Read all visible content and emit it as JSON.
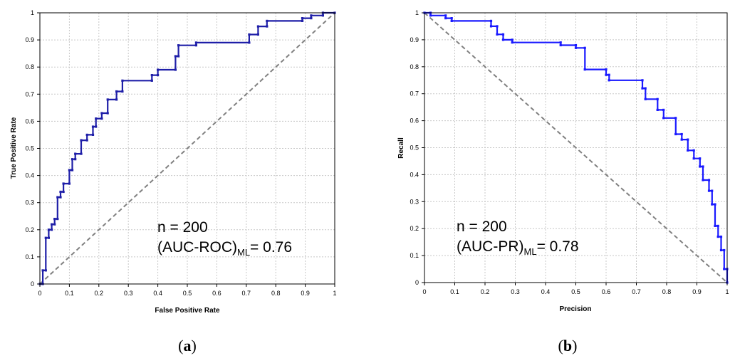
{
  "chart_data": [
    {
      "type": "line",
      "panel_label": {
        "open": "(",
        "letter": "a",
        "close": ")"
      },
      "xlabel": "False Positive Rate",
      "ylabel": "True Positive Rate",
      "xlim": [
        0,
        1
      ],
      "ylim": [
        0,
        1
      ],
      "xticks": [
        "0",
        "0.1",
        "0.2",
        "0.3",
        "0.4",
        "0.5",
        "0.6",
        "0.7",
        "0.8",
        "0.9",
        "1"
      ],
      "yticks": [
        "0",
        "0.1",
        "0.2",
        "0.3",
        "0.4",
        "0.5",
        "0.6",
        "0.7",
        "0.8",
        "0.9",
        "1"
      ],
      "grid": true,
      "annotation": {
        "n_text": "n = 200",
        "metric_open": "(AUC-ROC)",
        "metric_sub": "ML",
        "metric_value": "= 0.76"
      },
      "series": [
        {
          "color": "#1f1fa8",
          "marker": "dots",
          "style": "step",
          "points": [
            [
              0,
              0
            ],
            [
              0.01,
              0
            ],
            [
              0.01,
              0.05
            ],
            [
              0.02,
              0.05
            ],
            [
              0.02,
              0.17
            ],
            [
              0.03,
              0.17
            ],
            [
              0.03,
              0.2
            ],
            [
              0.04,
              0.2
            ],
            [
              0.04,
              0.22
            ],
            [
              0.05,
              0.22
            ],
            [
              0.05,
              0.24
            ],
            [
              0.06,
              0.24
            ],
            [
              0.06,
              0.32
            ],
            [
              0.07,
              0.32
            ],
            [
              0.07,
              0.34
            ],
            [
              0.08,
              0.34
            ],
            [
              0.08,
              0.37
            ],
            [
              0.1,
              0.37
            ],
            [
              0.1,
              0.42
            ],
            [
              0.11,
              0.42
            ],
            [
              0.11,
              0.46
            ],
            [
              0.12,
              0.46
            ],
            [
              0.12,
              0.48
            ],
            [
              0.14,
              0.48
            ],
            [
              0.14,
              0.53
            ],
            [
              0.16,
              0.53
            ],
            [
              0.16,
              0.55
            ],
            [
              0.18,
              0.55
            ],
            [
              0.18,
              0.58
            ],
            [
              0.19,
              0.58
            ],
            [
              0.19,
              0.61
            ],
            [
              0.21,
              0.61
            ],
            [
              0.21,
              0.63
            ],
            [
              0.23,
              0.63
            ],
            [
              0.23,
              0.68
            ],
            [
              0.26,
              0.68
            ],
            [
              0.26,
              0.71
            ],
            [
              0.28,
              0.71
            ],
            [
              0.28,
              0.75
            ],
            [
              0.38,
              0.75
            ],
            [
              0.38,
              0.77
            ],
            [
              0.4,
              0.77
            ],
            [
              0.4,
              0.79
            ],
            [
              0.46,
              0.79
            ],
            [
              0.46,
              0.84
            ],
            [
              0.47,
              0.84
            ],
            [
              0.47,
              0.88
            ],
            [
              0.53,
              0.88
            ],
            [
              0.53,
              0.89
            ],
            [
              0.71,
              0.89
            ],
            [
              0.71,
              0.92
            ],
            [
              0.74,
              0.92
            ],
            [
              0.74,
              0.95
            ],
            [
              0.77,
              0.95
            ],
            [
              0.77,
              0.97
            ],
            [
              0.89,
              0.97
            ],
            [
              0.89,
              0.98
            ],
            [
              0.92,
              0.98
            ],
            [
              0.92,
              0.99
            ],
            [
              0.96,
              0.99
            ],
            [
              0.96,
              1.0
            ],
            [
              1,
              1.0
            ]
          ]
        }
      ],
      "reference_line": [
        [
          0,
          0
        ],
        [
          1,
          1
        ]
      ]
    },
    {
      "type": "line",
      "panel_label": {
        "open": "(",
        "letter": "b",
        "close": ")"
      },
      "xlabel": "Precision",
      "ylabel": "Recall",
      "xlim": [
        0,
        1
      ],
      "ylim": [
        0,
        1
      ],
      "xticks": [
        "0",
        "0.1",
        "0.2",
        "0.3",
        "0.4",
        "0.5",
        "0.6",
        "0.7",
        "0.8",
        "0.9",
        "1"
      ],
      "yticks": [
        "0",
        "0.1",
        "0.2",
        "0.3",
        "0.4",
        "0.5",
        "0.6",
        "0.7",
        "0.8",
        "0.9",
        "1"
      ],
      "grid": true,
      "annotation": {
        "n_text": "n = 200",
        "metric_open": "(AUC-PR)",
        "metric_sub": "ML",
        "metric_value": "= 0.78"
      },
      "series": [
        {
          "color": "#1a1aff",
          "marker": "dots",
          "style": "step",
          "points": [
            [
              0,
              1.0
            ],
            [
              0.02,
              1.0
            ],
            [
              0.02,
              0.99
            ],
            [
              0.07,
              0.99
            ],
            [
              0.07,
              0.98
            ],
            [
              0.09,
              0.98
            ],
            [
              0.09,
              0.97
            ],
            [
              0.22,
              0.97
            ],
            [
              0.22,
              0.95
            ],
            [
              0.24,
              0.95
            ],
            [
              0.24,
              0.92
            ],
            [
              0.26,
              0.92
            ],
            [
              0.26,
              0.9
            ],
            [
              0.29,
              0.9
            ],
            [
              0.29,
              0.89
            ],
            [
              0.45,
              0.89
            ],
            [
              0.45,
              0.88
            ],
            [
              0.5,
              0.88
            ],
            [
              0.5,
              0.87
            ],
            [
              0.53,
              0.87
            ],
            [
              0.53,
              0.79
            ],
            [
              0.6,
              0.79
            ],
            [
              0.6,
              0.77
            ],
            [
              0.61,
              0.77
            ],
            [
              0.61,
              0.75
            ],
            [
              0.72,
              0.75
            ],
            [
              0.72,
              0.72
            ],
            [
              0.73,
              0.72
            ],
            [
              0.73,
              0.68
            ],
            [
              0.77,
              0.68
            ],
            [
              0.77,
              0.64
            ],
            [
              0.79,
              0.64
            ],
            [
              0.79,
              0.61
            ],
            [
              0.83,
              0.61
            ],
            [
              0.83,
              0.55
            ],
            [
              0.85,
              0.55
            ],
            [
              0.85,
              0.53
            ],
            [
              0.87,
              0.53
            ],
            [
              0.87,
              0.49
            ],
            [
              0.89,
              0.49
            ],
            [
              0.89,
              0.46
            ],
            [
              0.91,
              0.46
            ],
            [
              0.91,
              0.43
            ],
            [
              0.92,
              0.43
            ],
            [
              0.92,
              0.38
            ],
            [
              0.94,
              0.38
            ],
            [
              0.94,
              0.34
            ],
            [
              0.95,
              0.34
            ],
            [
              0.95,
              0.29
            ],
            [
              0.96,
              0.29
            ],
            [
              0.96,
              0.21
            ],
            [
              0.97,
              0.21
            ],
            [
              0.97,
              0.17
            ],
            [
              0.98,
              0.17
            ],
            [
              0.98,
              0.12
            ],
            [
              0.99,
              0.12
            ],
            [
              0.99,
              0.05
            ],
            [
              1.0,
              0.05
            ],
            [
              1.0,
              0.0
            ]
          ]
        }
      ],
      "reference_line": [
        [
          0,
          1
        ],
        [
          1,
          0
        ]
      ]
    }
  ]
}
